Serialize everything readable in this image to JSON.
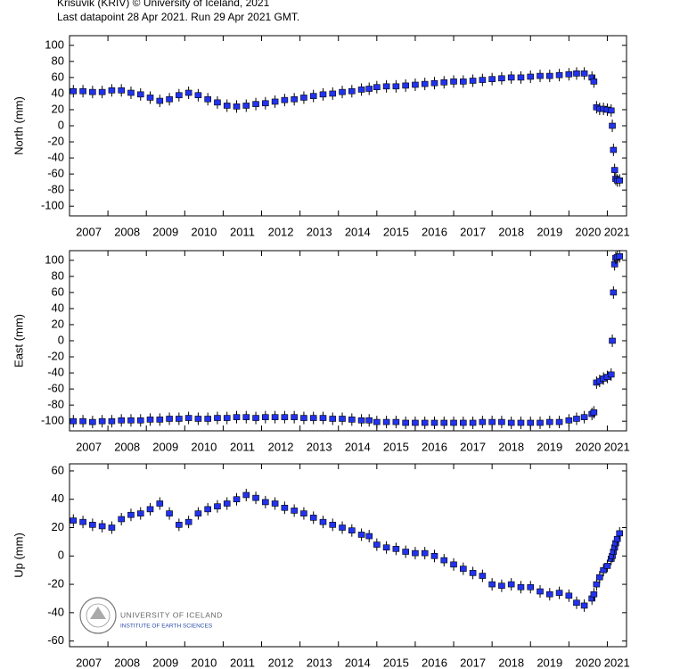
{
  "header": {
    "line1": "Krisuvik (KRIV) © University of Iceland, 2021",
    "line2": "Last datapoint 28 Apr 2021. Run 29 Apr 2021 GMT."
  },
  "logo": {
    "name": "UNIVERSITY OF ICELAND",
    "institute": "INSTITUTE OF EARTH SCIENCES"
  },
  "chart_data": [
    {
      "type": "scatter",
      "ylabel": "North (mm)",
      "color": "#2233ee",
      "x": [
        2007.1,
        2007.35,
        2007.6,
        2007.85,
        2008.1,
        2008.35,
        2008.6,
        2008.85,
        2009.1,
        2009.35,
        2009.6,
        2009.85,
        2010.1,
        2010.35,
        2010.6,
        2010.85,
        2011.1,
        2011.35,
        2011.6,
        2011.85,
        2012.1,
        2012.35,
        2012.6,
        2012.85,
        2013.1,
        2013.35,
        2013.6,
        2013.85,
        2014.1,
        2014.35,
        2014.6,
        2014.8,
        2015.0,
        2015.25,
        2015.5,
        2015.75,
        2016.0,
        2016.25,
        2016.5,
        2016.75,
        2017.0,
        2017.25,
        2017.5,
        2017.75,
        2018.0,
        2018.25,
        2018.5,
        2018.75,
        2019.0,
        2019.25,
        2019.5,
        2019.75,
        2020.0,
        2020.2,
        2020.4,
        2020.6,
        2020.65,
        2020.72,
        2020.8,
        2020.9,
        2021.0,
        2021.1,
        2021.13,
        2021.16,
        2021.19,
        2021.22,
        2021.26,
        2021.32
      ],
      "values": [
        43,
        43,
        42,
        42,
        44,
        44,
        41,
        39,
        35,
        31,
        33,
        38,
        41,
        38,
        33,
        29,
        25,
        24,
        25,
        27,
        28,
        30,
        32,
        33,
        35,
        37,
        39,
        40,
        42,
        43,
        45,
        46,
        48,
        49,
        49,
        50,
        51,
        52,
        53,
        54,
        55,
        55,
        56,
        57,
        58,
        59,
        60,
        60,
        61,
        62,
        62,
        63,
        64,
        65,
        65,
        60,
        55,
        23,
        21,
        21,
        20,
        19,
        0,
        -30,
        -55,
        -66,
        -68,
        -68
      ],
      "xlim": [
        2007,
        2021.5
      ],
      "xticks": [
        2007,
        2008,
        2009,
        2010,
        2011,
        2012,
        2013,
        2014,
        2015,
        2016,
        2017,
        2018,
        2019,
        2020,
        2021
      ],
      "ylim": [
        -112,
        112
      ],
      "yticks": [
        100,
        80,
        60,
        40,
        20,
        0,
        -20,
        -40,
        -60,
        -80,
        -100
      ]
    },
    {
      "type": "scatter",
      "ylabel": "East (mm)",
      "color": "#2233ee",
      "x": [
        2007.1,
        2007.35,
        2007.6,
        2007.85,
        2008.1,
        2008.35,
        2008.6,
        2008.85,
        2009.1,
        2009.35,
        2009.6,
        2009.85,
        2010.1,
        2010.35,
        2010.6,
        2010.85,
        2011.1,
        2011.35,
        2011.6,
        2011.85,
        2012.1,
        2012.35,
        2012.6,
        2012.85,
        2013.1,
        2013.35,
        2013.6,
        2013.85,
        2014.1,
        2014.35,
        2014.6,
        2014.8,
        2015.0,
        2015.25,
        2015.5,
        2015.75,
        2016.0,
        2016.25,
        2016.5,
        2016.75,
        2017.0,
        2017.25,
        2017.5,
        2017.75,
        2018.0,
        2018.25,
        2018.5,
        2018.75,
        2019.0,
        2019.25,
        2019.5,
        2019.75,
        2020.0,
        2020.2,
        2020.4,
        2020.6,
        2020.65,
        2020.72,
        2020.8,
        2020.9,
        2021.0,
        2021.1,
        2021.13,
        2021.16,
        2021.19,
        2021.22,
        2021.26,
        2021.32
      ],
      "values": [
        -100,
        -100,
        -101,
        -100,
        -100,
        -99,
        -99,
        -99,
        -98,
        -98,
        -97,
        -97,
        -96,
        -97,
        -97,
        -96,
        -96,
        -95,
        -95,
        -96,
        -95,
        -95,
        -95,
        -95,
        -96,
        -96,
        -96,
        -97,
        -97,
        -98,
        -99,
        -99,
        -101,
        -101,
        -101,
        -102,
        -102,
        -102,
        -102,
        -102,
        -102,
        -102,
        -102,
        -101,
        -101,
        -101,
        -102,
        -102,
        -102,
        -102,
        -101,
        -101,
        -99,
        -97,
        -95,
        -91,
        -89,
        -52,
        -50,
        -47,
        -45,
        -42,
        0,
        60,
        95,
        103,
        104,
        105
      ],
      "xlim": [
        2007,
        2021.5
      ],
      "xticks": [
        2007,
        2008,
        2009,
        2010,
        2011,
        2012,
        2013,
        2014,
        2015,
        2016,
        2017,
        2018,
        2019,
        2020,
        2021
      ],
      "ylim": [
        -112,
        112
      ],
      "yticks": [
        100,
        80,
        60,
        40,
        20,
        0,
        -20,
        -40,
        -60,
        -80,
        -100
      ]
    },
    {
      "type": "scatter",
      "ylabel": "Up (mm)",
      "color": "#2233ee",
      "x": [
        2007.1,
        2007.35,
        2007.6,
        2007.85,
        2008.1,
        2008.35,
        2008.6,
        2008.85,
        2009.1,
        2009.35,
        2009.6,
        2009.85,
        2010.1,
        2010.35,
        2010.6,
        2010.85,
        2011.1,
        2011.35,
        2011.6,
        2011.85,
        2012.1,
        2012.35,
        2012.6,
        2012.85,
        2013.1,
        2013.35,
        2013.6,
        2013.85,
        2014.1,
        2014.35,
        2014.6,
        2014.8,
        2015.0,
        2015.25,
        2015.5,
        2015.75,
        2016.0,
        2016.25,
        2016.5,
        2016.75,
        2017.0,
        2017.25,
        2017.5,
        2017.75,
        2018.0,
        2018.25,
        2018.5,
        2018.75,
        2019.0,
        2019.25,
        2019.5,
        2019.75,
        2020.0,
        2020.2,
        2020.4,
        2020.6,
        2020.65,
        2020.72,
        2020.8,
        2020.9,
        2021.0,
        2021.1,
        2021.13,
        2021.16,
        2021.19,
        2021.22,
        2021.26,
        2021.32
      ],
      "values": [
        25,
        24,
        22,
        21,
        20,
        26,
        29,
        30,
        33,
        37,
        30,
        22,
        24,
        30,
        33,
        35,
        37,
        40,
        43,
        41,
        38,
        37,
        34,
        32,
        30,
        27,
        24,
        22,
        20,
        18,
        15,
        14,
        8,
        6,
        5,
        3,
        2,
        2,
        0,
        -3,
        -6,
        -9,
        -12,
        -14,
        -20,
        -21,
        -20,
        -22,
        -22,
        -25,
        -27,
        -26,
        -28,
        -33,
        -35,
        -30,
        -27,
        -20,
        -15,
        -10,
        -7,
        -2,
        0,
        3,
        6,
        9,
        12,
        16
      ],
      "xlim": [
        2007,
        2021.5
      ],
      "xticks": [
        2007,
        2008,
        2009,
        2010,
        2011,
        2012,
        2013,
        2014,
        2015,
        2016,
        2017,
        2018,
        2019,
        2020,
        2021
      ],
      "ylim": [
        -64,
        65
      ],
      "yticks": [
        60,
        40,
        20,
        0,
        -20,
        -40,
        -60
      ]
    }
  ]
}
